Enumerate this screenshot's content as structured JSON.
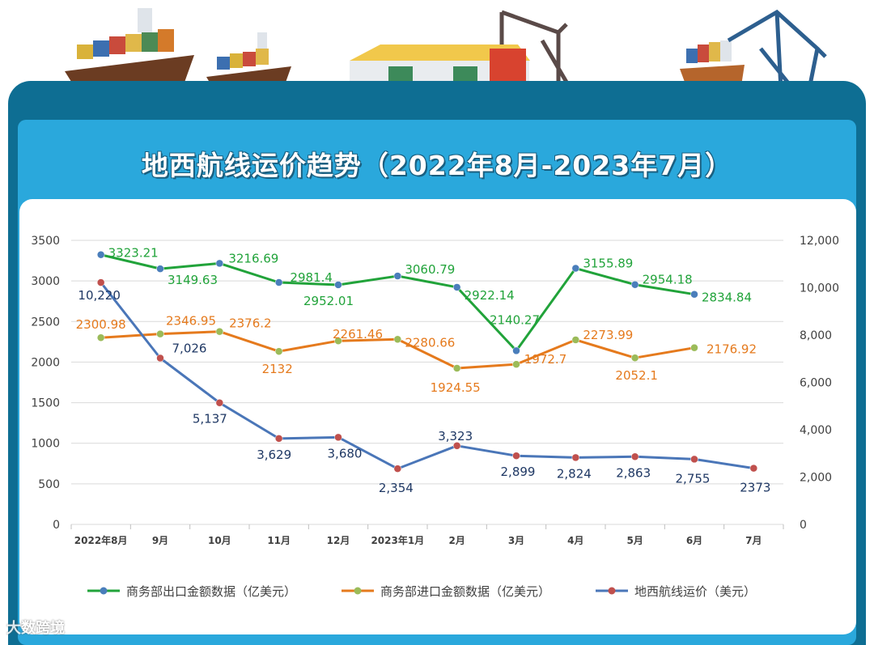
{
  "title": "地西航线运价趋势（2022年8月-2023年7月）",
  "watermark": "大数跨境",
  "chart_data": {
    "type": "line",
    "title": "地西航线运价趋势（2022年8月-2023年7月）",
    "categories": [
      "2022年8月",
      "9月",
      "10月",
      "11月",
      "12月",
      "2023年1月",
      "2月",
      "3月",
      "4月",
      "5月",
      "6月",
      "7月"
    ],
    "left_axis": {
      "ylim": [
        0,
        3500
      ],
      "ticks": [
        "0",
        "500",
        "1000",
        "1500",
        "2000",
        "2500",
        "3000",
        "3500"
      ]
    },
    "right_axis": {
      "ylim": [
        0,
        12000
      ],
      "ticks": [
        "0",
        "2,000",
        "4,000",
        "6,000",
        "8,000",
        "10,000",
        "12,000"
      ]
    },
    "grid": true,
    "legend_position": "bottom",
    "series": [
      {
        "name": "商务部出口金额数据（亿美元）",
        "axis": "left",
        "color": "#21a33a",
        "marker_color": "#4a7ebb",
        "values": [
          3323.21,
          3149.63,
          3216.69,
          2981.4,
          2952.01,
          3060.79,
          2922.14,
          2140.27,
          3155.89,
          2954.18,
          2834.84,
          null
        ],
        "labels": [
          "3323.21",
          "3149.63",
          "3216.69",
          "2981.4",
          "2952.01",
          "3060.79",
          "2922.14",
          "2140.27",
          "3155.89",
          "2954.18",
          "2834.84",
          ""
        ]
      },
      {
        "name": "商务部进口金额数据（亿美元）",
        "axis": "left",
        "color": "#e57a1d",
        "marker_color": "#9bbb59",
        "values": [
          2300.98,
          2346.95,
          2376.2,
          2132,
          2261.46,
          2280.66,
          1924.55,
          1972.7,
          2273.99,
          2052.1,
          2176.92,
          null
        ],
        "labels": [
          "2300.98",
          "2346.95",
          "2376.2",
          "2132",
          "2261.46",
          "2280.66",
          "1924.55",
          "1972.7",
          "2273.99",
          "2052.1",
          "2176.92",
          ""
        ]
      },
      {
        "name": "地西航线运价（美元）",
        "axis": "right",
        "color": "#4a76b8",
        "marker_color": "#c0504d",
        "values": [
          10220,
          7026,
          5137,
          3629,
          3680,
          2354,
          3323,
          2899,
          2824,
          2863,
          2755,
          2373
        ],
        "labels": [
          "10,220",
          "7,026",
          "5,137",
          "3,629",
          "3,680",
          "2,354",
          "3,323",
          "2,899",
          "2,824",
          "2,863",
          "2,755",
          "2373"
        ]
      }
    ]
  }
}
